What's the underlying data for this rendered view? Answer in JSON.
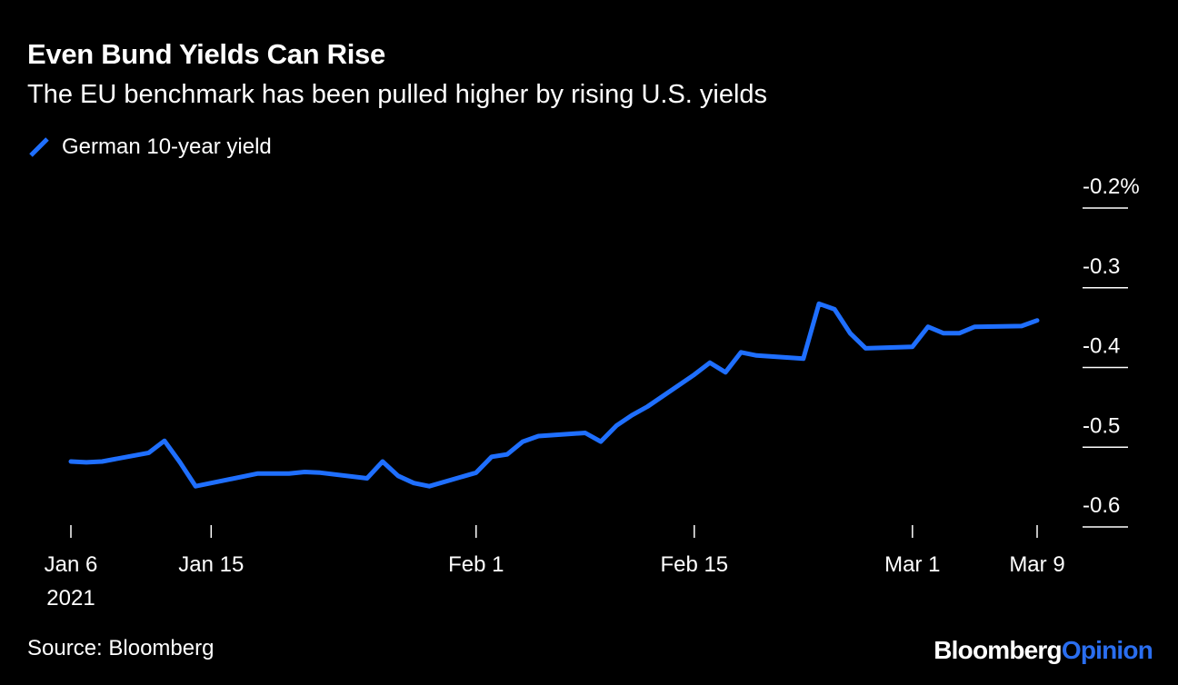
{
  "header": {
    "title": "Even Bund Yields Can Rise",
    "subtitle": "The EU benchmark has been pulled higher by rising U.S. yields"
  },
  "colors": {
    "background": "#000000",
    "line": "#1f6fff",
    "text": "#ffffff",
    "logo_accent": "#2a6ef0"
  },
  "footer": {
    "source": "Source: Bloomberg",
    "logo_part1": "Bloomberg",
    "logo_part2": "Opinion"
  },
  "chart_data": {
    "type": "line",
    "title": "Even Bund Yields Can Rise",
    "subtitle": "The EU benchmark has been pulled higher by rising U.S. yields",
    "xlabel": "",
    "ylabel": "",
    "y_axis_position": "right",
    "ylim": [
      -0.6,
      -0.2
    ],
    "yticks": [
      -0.2,
      -0.3,
      -0.4,
      -0.5,
      -0.6
    ],
    "ytick_labels": [
      "-0.2%",
      "-0.3",
      "-0.4",
      "-0.5",
      "-0.6"
    ],
    "xlim_days": [
      0,
      62
    ],
    "xticks": [
      {
        "day": 0,
        "label": "Jan 6",
        "sublabel": "2021"
      },
      {
        "day": 9,
        "label": "Jan 15",
        "sublabel": ""
      },
      {
        "day": 26,
        "label": "Feb 1",
        "sublabel": ""
      },
      {
        "day": 40,
        "label": "Feb 15",
        "sublabel": ""
      },
      {
        "day": 54,
        "label": "Mar 1",
        "sublabel": ""
      },
      {
        "day": 62,
        "label": "Mar 9",
        "sublabel": ""
      }
    ],
    "legend": [
      "German 10-year yield"
    ],
    "series": [
      {
        "name": "German 10-year yield",
        "days": [
          0,
          1,
          2,
          5,
          6,
          7,
          8,
          9,
          12,
          13,
          14,
          15,
          16,
          19,
          20,
          21,
          22,
          23,
          26,
          27,
          28,
          29,
          30,
          33,
          34,
          35,
          36,
          37,
          40,
          41,
          42,
          43,
          44,
          47,
          48,
          49,
          50,
          51,
          54,
          55,
          56,
          57,
          58,
          61,
          62
        ],
        "values": [
          -0.518,
          -0.519,
          -0.518,
          -0.507,
          -0.492,
          -0.519,
          -0.549,
          -0.545,
          -0.533,
          -0.533,
          -0.533,
          -0.531,
          -0.532,
          -0.539,
          -0.518,
          -0.536,
          -0.545,
          -0.549,
          -0.532,
          -0.512,
          -0.509,
          -0.493,
          -0.486,
          -0.482,
          -0.493,
          -0.473,
          -0.46,
          -0.449,
          -0.409,
          -0.394,
          -0.406,
          -0.381,
          -0.385,
          -0.389,
          -0.32,
          -0.327,
          -0.357,
          -0.376,
          -0.374,
          -0.349,
          -0.357,
          -0.357,
          -0.349,
          -0.348,
          -0.341
        ]
      }
    ]
  }
}
